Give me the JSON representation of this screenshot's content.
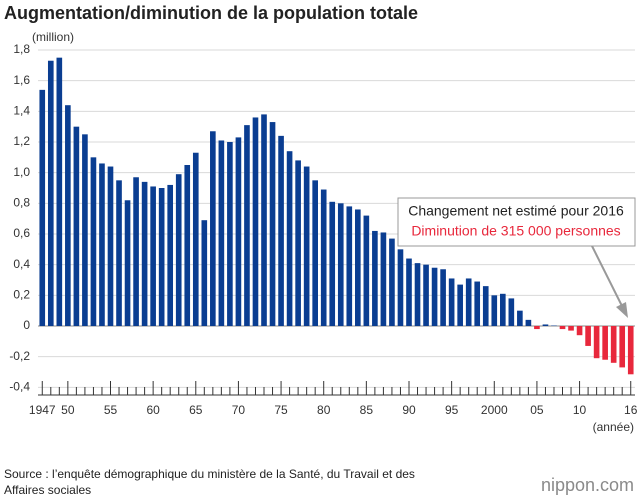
{
  "chart_data": {
    "type": "bar",
    "title": "Augmentation/diminution de la population totale",
    "y_label": "(million)",
    "x_label": "(année)",
    "annotation": {
      "line1": "Changement net estimé pour 2016",
      "line2": "Diminution de 315 000 personnes"
    },
    "source": [
      "Source : l’enquête démographique du ministère de la Santé, du Travail et des",
      "Affaires sociales"
    ],
    "brand": "nippon.com",
    "categories": [
      "1947",
      null,
      null,
      "50",
      null,
      null,
      null,
      null,
      "55",
      null,
      null,
      null,
      null,
      "60",
      null,
      null,
      null,
      null,
      "65",
      null,
      null,
      null,
      null,
      "70",
      null,
      null,
      null,
      null,
      "75",
      null,
      null,
      null,
      null,
      "80",
      null,
      null,
      null,
      null,
      "85",
      null,
      null,
      null,
      null,
      "90",
      null,
      null,
      null,
      null,
      "95",
      null,
      null,
      null,
      null,
      "2000",
      null,
      null,
      null,
      null,
      "05",
      null,
      null,
      null,
      null,
      "10",
      null,
      null,
      null,
      null,
      null,
      "16"
    ],
    "values": [
      1.54,
      1.73,
      1.75,
      1.44,
      1.3,
      1.25,
      1.1,
      1.06,
      1.04,
      0.95,
      0.82,
      0.97,
      0.94,
      0.91,
      0.9,
      0.92,
      0.99,
      1.05,
      1.13,
      0.69,
      1.27,
      1.21,
      1.2,
      1.23,
      1.31,
      1.36,
      1.38,
      1.33,
      1.24,
      1.14,
      1.08,
      1.04,
      0.95,
      0.89,
      0.81,
      0.8,
      0.78,
      0.76,
      0.72,
      0.62,
      0.61,
      0.57,
      0.5,
      0.44,
      0.41,
      0.4,
      0.38,
      0.37,
      0.31,
      0.27,
      0.31,
      0.29,
      0.26,
      0.2,
      0.21,
      0.18,
      0.1,
      0.04,
      -0.02,
      0.01,
      0.003,
      -0.02,
      -0.03,
      -0.06,
      -0.13,
      -0.21,
      -0.22,
      -0.24,
      -0.27,
      -0.315
    ],
    "positive_color": "#0a3d91",
    "negative_color": "#e8283c",
    "ylim": [
      -0.45,
      1.8
    ],
    "yticks": [
      {
        "value": 1.8,
        "label": "1,8"
      },
      {
        "value": 1.6,
        "label": "1,6"
      },
      {
        "value": 1.4,
        "label": "1,4"
      },
      {
        "value": 1.2,
        "label": "1,2"
      },
      {
        "value": 1.0,
        "label": "1,0"
      },
      {
        "value": 0.8,
        "label": "0,8"
      },
      {
        "value": 0.6,
        "label": "0,6"
      },
      {
        "value": 0.4,
        "label": "0,4"
      },
      {
        "value": 0.2,
        "label": "0,2"
      },
      0,
      {
        "value": -0.2,
        "label": "-0,2"
      },
      {
        "value": -0.4,
        "label": "-0,4"
      }
    ],
    "grid": true
  }
}
